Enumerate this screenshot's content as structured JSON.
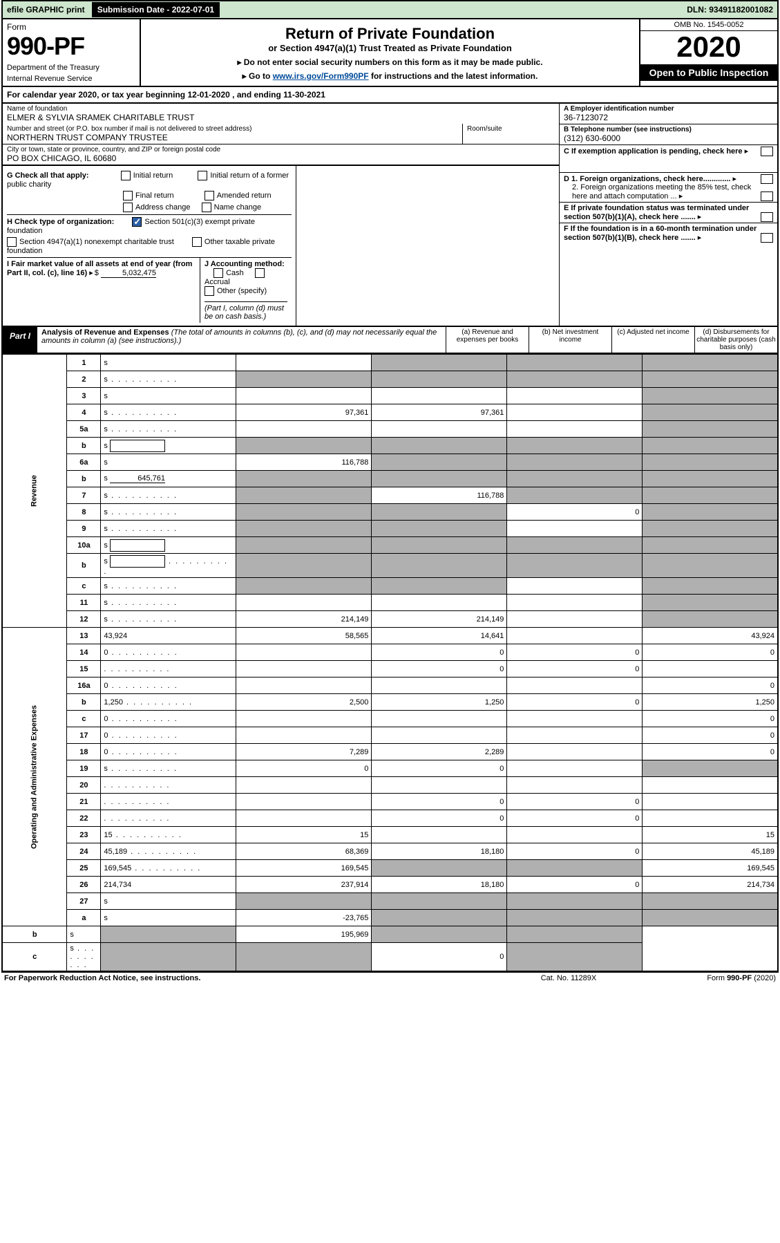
{
  "topbar": {
    "efile": "efile GRAPHIC print",
    "subdate_label": "Submission Date - 2022-07-01",
    "dln": "DLN: 93491182001082"
  },
  "header": {
    "form_label": "Form",
    "form_no": "990-PF",
    "dept": "Department of the Treasury",
    "irs": "Internal Revenue Service",
    "title": "Return of Private Foundation",
    "sub1": "or Section 4947(a)(1) Trust Treated as Private Foundation",
    "sub2a": "▸ Do not enter social security numbers on this form as it may be made public.",
    "sub2b_pre": "▸ Go to ",
    "sub2b_link": "www.irs.gov/Form990PF",
    "sub2b_post": " for instructions and the latest information.",
    "omb": "OMB No. 1545-0052",
    "year": "2020",
    "open": "Open to Public Inspection"
  },
  "cal": "For calendar year 2020, or tax year beginning 12-01-2020                            , and ending 11-30-2021",
  "id": {
    "name_lab": "Name of foundation",
    "name": "ELMER & SYLVIA SRAMEK CHARITABLE TRUST",
    "addr_lab": "Number and street (or P.O. box number if mail is not delivered to street address)",
    "addr": "NORTHERN TRUST COMPANY TRUSTEE",
    "room_lab": "Room/suite",
    "city_lab": "City or town, state or province, country, and ZIP or foreign postal code",
    "city": "PO BOX CHICAGO, IL  60680",
    "ein_lab": "A Employer identification number",
    "ein": "36-7123072",
    "tel_lab": "B Telephone number (see instructions)",
    "tel": "(312) 630-6000",
    "c_lab": "C If exemption application is pending, check here",
    "d1": "D 1. Foreign organizations, check here.............",
    "d2": "2. Foreign organizations meeting the 85% test, check here and attach computation ...",
    "e_lab": "E  If private foundation status was terminated under section 507(b)(1)(A), check here .......",
    "f_lab": "F  If the foundation is in a 60-month termination under section 507(b)(1)(B), check here .......",
    "g_lab": "G Check all that apply:",
    "g_opts": [
      "Initial return",
      "Final return",
      "Address change",
      "Initial return of a former public charity",
      "Amended return",
      "Name change"
    ],
    "h_lab": "H Check type of organization:",
    "h1": "Section 501(c)(3) exempt private foundation",
    "h2": "Section 4947(a)(1) nonexempt charitable trust",
    "h3": "Other taxable private foundation",
    "i_lab": "I Fair market value of all assets at end of year (from Part II, col. (c), line 16)",
    "i_val": "5,032,475",
    "j_lab": "J Accounting method:",
    "j_cash": "Cash",
    "j_acc": "Accrual",
    "j_oth": "Other (specify)",
    "j_note": "(Part I, column (d) must be on cash basis.)"
  },
  "part1": {
    "lbl": "Part I",
    "title": "Analysis of Revenue and Expenses",
    "note": "(The total of amounts in columns (b), (c), and (d) may not necessarily equal the amounts in column (a) (see instructions).)",
    "cols": {
      "a": "(a)  Revenue and expenses per books",
      "b": "(b)  Net investment income",
      "c": "(c)  Adjusted net income",
      "d": "(d)  Disbursements for charitable purposes (cash basis only)"
    }
  },
  "sidelabels": {
    "rev": "Revenue",
    "op": "Operating and Administrative Expenses"
  },
  "rows": [
    {
      "n": "1",
      "d": "s",
      "a": "",
      "b": "s",
      "c": "s"
    },
    {
      "n": "2",
      "d": "s",
      "dots": 1,
      "a": "s",
      "b": "s",
      "c": "s"
    },
    {
      "n": "3",
      "d": "s",
      "a": "",
      "b": "",
      "c": ""
    },
    {
      "n": "4",
      "d": "s",
      "dots": 1,
      "a": "97,361",
      "b": "97,361",
      "c": ""
    },
    {
      "n": "5a",
      "d": "s",
      "dots": 1,
      "a": "",
      "b": "",
      "c": ""
    },
    {
      "n": "b",
      "d": "s",
      "box": "",
      "a": "s",
      "b": "s",
      "c": "s"
    },
    {
      "n": "6a",
      "d": "s",
      "a": "116,788",
      "b": "s",
      "c": "s"
    },
    {
      "n": "b",
      "d": "s",
      "ul": "645,761",
      "a": "s",
      "b": "s",
      "c": "s"
    },
    {
      "n": "7",
      "d": "s",
      "dots": 1,
      "a": "s",
      "b": "116,788",
      "c": "s"
    },
    {
      "n": "8",
      "d": "s",
      "dots": 1,
      "a": "s",
      "b": "s",
      "c": "0"
    },
    {
      "n": "9",
      "d": "s",
      "dots": 1,
      "a": "s",
      "b": "s",
      "c": ""
    },
    {
      "n": "10a",
      "d": "s",
      "box": "",
      "a": "s",
      "b": "s",
      "c": "s"
    },
    {
      "n": "b",
      "d": "s",
      "dots": 1,
      "box": "",
      "a": "s",
      "b": "s",
      "c": "s"
    },
    {
      "n": "c",
      "d": "s",
      "dots": 1,
      "a": "s",
      "b": "s",
      "c": ""
    },
    {
      "n": "11",
      "d": "s",
      "dots": 1,
      "a": "",
      "b": "",
      "c": ""
    },
    {
      "n": "12",
      "d": "s",
      "dots": 1,
      "a": "214,149",
      "b": "214,149",
      "c": ""
    },
    {
      "n": "13",
      "d": "43,924",
      "a": "58,565",
      "b": "14,641",
      "c": ""
    },
    {
      "n": "14",
      "d": "0",
      "dots": 1,
      "a": "",
      "b": "0",
      "c": "0"
    },
    {
      "n": "15",
      "d": "",
      "dots": 1,
      "a": "",
      "b": "0",
      "c": "0"
    },
    {
      "n": "16a",
      "d": "0",
      "dots": 1,
      "a": "",
      "b": "",
      "c": ""
    },
    {
      "n": "b",
      "d": "1,250",
      "dots": 1,
      "a": "2,500",
      "b": "1,250",
      "c": "0"
    },
    {
      "n": "c",
      "d": "0",
      "dots": 1,
      "a": "",
      "b": "",
      "c": ""
    },
    {
      "n": "17",
      "d": "0",
      "dots": 1,
      "a": "",
      "b": "",
      "c": ""
    },
    {
      "n": "18",
      "d": "0",
      "dots": 1,
      "a": "7,289",
      "b": "2,289",
      "c": ""
    },
    {
      "n": "19",
      "d": "s",
      "dots": 1,
      "a": "0",
      "b": "0",
      "c": ""
    },
    {
      "n": "20",
      "d": "",
      "dots": 1,
      "a": "",
      "b": "",
      "c": ""
    },
    {
      "n": "21",
      "d": "",
      "dots": 1,
      "a": "",
      "b": "0",
      "c": "0"
    },
    {
      "n": "22",
      "d": "",
      "dots": 1,
      "a": "",
      "b": "0",
      "c": "0"
    },
    {
      "n": "23",
      "d": "15",
      "dots": 1,
      "a": "15",
      "b": "",
      "c": ""
    },
    {
      "n": "24",
      "d": "45,189",
      "dots": 1,
      "a": "68,369",
      "b": "18,180",
      "c": "0"
    },
    {
      "n": "25",
      "d": "169,545",
      "dots": 1,
      "a": "169,545",
      "b": "s",
      "c": "s"
    },
    {
      "n": "26",
      "d": "214,734",
      "a": "237,914",
      "b": "18,180",
      "c": "0"
    },
    {
      "n": "27",
      "d": "s",
      "a": "s",
      "b": "s",
      "c": "s"
    },
    {
      "n": "a",
      "d": "s",
      "a": "-23,765",
      "b": "s",
      "c": "s"
    },
    {
      "n": "b",
      "d": "s",
      "a": "s",
      "b": "195,969",
      "c": "s"
    },
    {
      "n": "c",
      "d": "s",
      "dots": 1,
      "a": "s",
      "b": "s",
      "c": "0"
    }
  ],
  "footer": {
    "f1": "For Paperwork Reduction Act Notice, see instructions.",
    "f2": "Cat. No. 11289X",
    "f3": "Form 990-PF (2020)"
  },
  "colors": {
    "topbar_bg": "#cde6cd",
    "checked_bg": "#2d5fa4",
    "shade": "#b0b0b0",
    "link": "#004b9b"
  }
}
